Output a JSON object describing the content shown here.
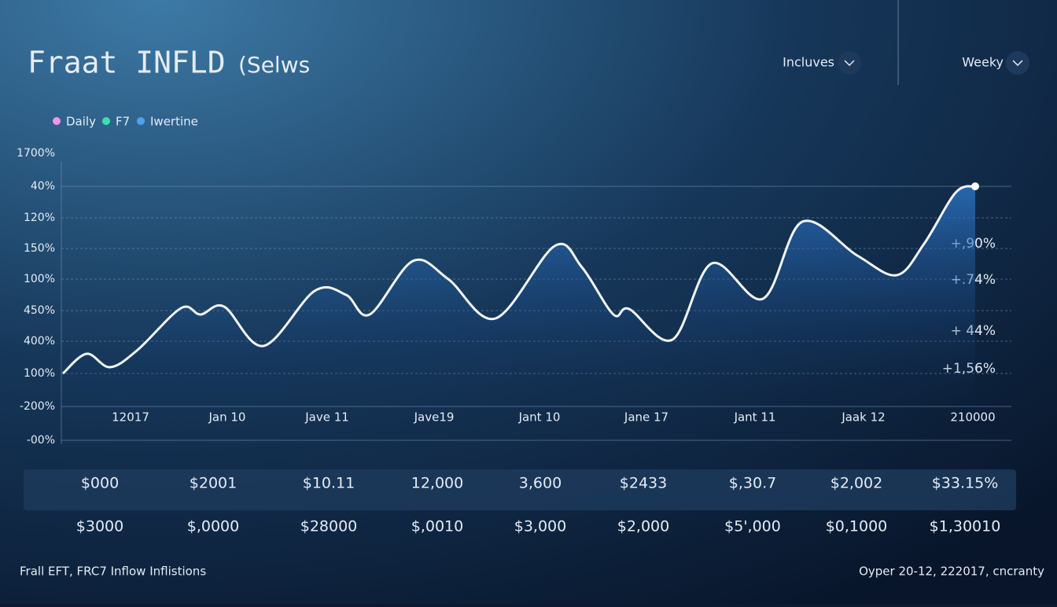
{
  "header": {
    "title": "Fraat INFLD",
    "subtitle": "(Selws",
    "controls": [
      "Incluves",
      "Weeky"
    ]
  },
  "legend": [
    "Daily",
    "F7",
    "Iwertine"
  ],
  "axis": {
    "y_labels": [
      "1700%",
      "40%",
      "120%",
      "150%",
      "100%",
      "450%",
      "400%",
      "100%",
      "-200%",
      "-00%"
    ],
    "x_labels": [
      "12017",
      "Jan 10",
      "Jave 11",
      "Jave19",
      "Jant 10",
      "Jane 17",
      "Jant 11",
      "Jaak 12",
      "210000"
    ]
  },
  "annotations": [
    "+,90%",
    "+.74%",
    "+ 44%",
    "+1,56%"
  ],
  "table": {
    "rows": [
      [
        "$000",
        "$2001",
        "$10.11",
        "12,000",
        "3,600",
        "$2433",
        "$,30.7",
        "$2,002",
        "$33.15%"
      ],
      [
        "$3000",
        "$,0000",
        "$28000",
        "$,0010",
        "$3,000",
        "$2,000",
        "$5',000",
        "$0,1000",
        "$1,30010"
      ]
    ]
  },
  "footer": {
    "left": "Frall EFT, FRC7 Inflow Inflistions",
    "right": "Oyper 20-12, 222017, cncranty"
  }
}
